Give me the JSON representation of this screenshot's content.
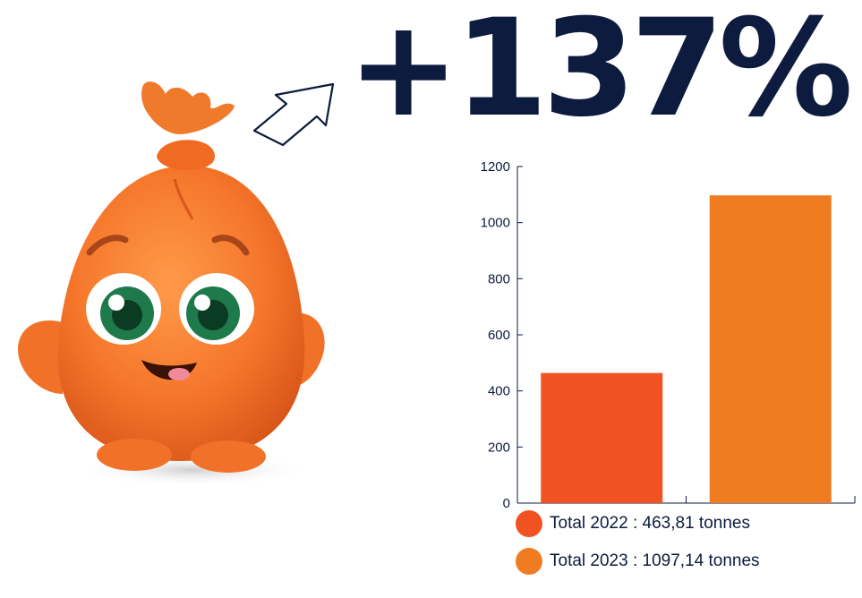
{
  "headline": "+137%",
  "colors": {
    "text": "#0d1b3e",
    "bar_2022": "#f15222",
    "bar_2023": "#f07c22",
    "mascot": "#f5762a"
  },
  "icons": {
    "mascot": "orange-bag-mascot-icon",
    "arrow": "up-right-arrow-icon"
  },
  "legend": [
    {
      "label": "Total 2022 : 463,81 tonnes",
      "color": "#f15222"
    },
    {
      "label": "Total 2023 : 1097,14 tonnes",
      "color": "#f07c22"
    }
  ],
  "chart_data": {
    "type": "bar",
    "categories": [
      "2022",
      "2023"
    ],
    "values": [
      463.81,
      1097.14
    ],
    "colors": [
      "#f15222",
      "#f07c22"
    ],
    "ylim": [
      0,
      1200
    ],
    "yticks": [
      0,
      200,
      400,
      600,
      800,
      1000,
      1200
    ],
    "grid": false,
    "legend_placement": "bottom"
  }
}
